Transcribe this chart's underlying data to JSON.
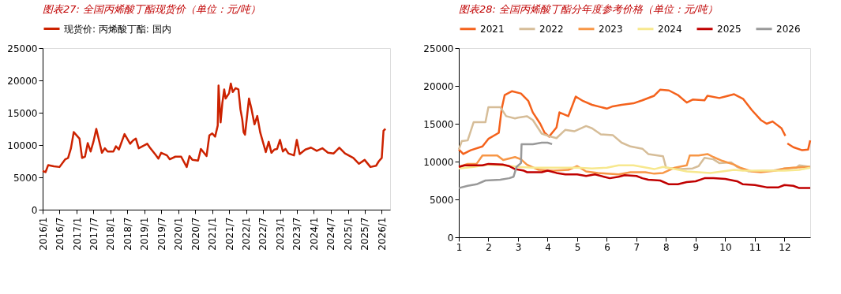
{
  "chart_data": [
    {
      "type": "line",
      "title": "图表27: 全国丙烯酸丁酯现货价（单位：元/吨）",
      "legend": "top",
      "grid": false,
      "marker": "none",
      "line_style": "solid",
      "x": [
        "2016-01-01",
        "2016-02-01",
        "2016-03-01",
        "2016-05-01",
        "2016-07-01",
        "2016-09-01",
        "2016-10-01",
        "2016-11-01",
        "2016-12-01",
        "2017-02-01",
        "2017-03-01",
        "2017-04-01",
        "2017-05-01",
        "2017-06-01",
        "2017-07-01",
        "2017-08-01",
        "2017-10-01",
        "2017-11-01",
        "2017-12-01",
        "2018-02-01",
        "2018-03-01",
        "2018-04-01",
        "2018-06-01",
        "2018-08-01",
        "2018-09-01",
        "2018-10-01",
        "2018-11-01",
        "2019-02-01",
        "2019-03-01",
        "2019-05-01",
        "2019-06-01",
        "2019-07-01",
        "2019-09-01",
        "2019-10-01",
        "2019-12-01",
        "2020-02-01",
        "2020-04-01",
        "2020-05-01",
        "2020-06-01",
        "2020-08-01",
        "2020-09-01",
        "2020-11-01",
        "2020-12-01",
        "2021-01-01",
        "2021-02-01",
        "2021-03-01",
        "2021-03-10",
        "2021-04-01",
        "2021-04-20",
        "2021-05-10",
        "2021-05-25",
        "2021-07-01",
        "2021-07-20",
        "2021-08-10",
        "2021-09-10",
        "2021-10-10",
        "2021-11-01",
        "2021-11-20",
        "2021-12-05",
        "2021-12-20",
        "2022-02-01",
        "2022-03-01",
        "2022-04-01",
        "2022-05-01",
        "2022-06-01",
        "2022-08-01",
        "2022-09-01",
        "2022-10-01",
        "2022-11-01",
        "2022-12-01",
        "2023-01-01",
        "2023-02-01",
        "2023-03-01",
        "2023-04-01",
        "2023-06-01",
        "2023-07-01",
        "2023-08-01",
        "2023-10-01",
        "2023-12-01",
        "2024-02-01",
        "2024-04-01",
        "2024-06-01",
        "2024-08-01",
        "2024-10-01",
        "2024-12-01",
        "2025-03-01",
        "2025-05-01",
        "2025-07-01",
        "2025-09-01",
        "2025-11-01",
        "2025-12-01",
        "2026-01-01",
        "2026-01-20",
        "2026-02-10"
      ],
      "series": [
        {
          "name": "现货价: 丙烯酸丁酯: 国内",
          "color": "#cc2200",
          "values": [
            6000,
            5800,
            6900,
            6700,
            6600,
            7800,
            8000,
            9500,
            12000,
            11000,
            8000,
            8200,
            10300,
            9000,
            10500,
            12500,
            8800,
            9500,
            9000,
            9000,
            9800,
            9300,
            11700,
            10200,
            10700,
            11000,
            9500,
            10200,
            9600,
            8500,
            7900,
            8800,
            8400,
            7800,
            8200,
            8200,
            6600,
            8300,
            7700,
            7600,
            9400,
            8300,
            11500,
            11800,
            11300,
            13000,
            19200,
            13500,
            16500,
            18600,
            17200,
            18000,
            19500,
            18200,
            18800,
            18600,
            15500,
            14000,
            12000,
            11600,
            17200,
            15500,
            13200,
            14500,
            12000,
            8900,
            10500,
            8800,
            9300,
            9400,
            10800,
            9000,
            9400,
            8700,
            8400,
            10800,
            8600,
            9300,
            9600,
            9100,
            9500,
            8800,
            8700,
            9600,
            8700,
            8000,
            7100,
            7700,
            6600,
            6800,
            7500,
            8000,
            12200,
            12500
          ]
        }
      ],
      "xlim": [
        "2016-01-01",
        "2026-04-01"
      ],
      "xticks": [
        {
          "value": "2016-01-01",
          "label": "2016/1"
        },
        {
          "value": "2016-07-01",
          "label": "2016/7"
        },
        {
          "value": "2017-01-01",
          "label": "2017/1"
        },
        {
          "value": "2017-07-01",
          "label": "2017/7"
        },
        {
          "value": "2018-01-01",
          "label": "2018/1"
        },
        {
          "value": "2018-07-01",
          "label": "2018/7"
        },
        {
          "value": "2019-01-01",
          "label": "2019/1"
        },
        {
          "value": "2019-07-01",
          "label": "2019/7"
        },
        {
          "value": "2020-01-01",
          "label": "2020/1"
        },
        {
          "value": "2020-07-01",
          "label": "2020/7"
        },
        {
          "value": "2021-01-01",
          "label": "2021/1"
        },
        {
          "value": "2021-07-01",
          "label": "2021/7"
        },
        {
          "value": "2022-01-01",
          "label": "2022/1"
        },
        {
          "value": "2022-07-01",
          "label": "2022/7"
        },
        {
          "value": "2023-01-01",
          "label": "2023/1"
        },
        {
          "value": "2023-07-01",
          "label": "2023/7"
        },
        {
          "value": "2024-01-01",
          "label": "2024/1"
        },
        {
          "value": "2024-07-01",
          "label": "2024/7"
        },
        {
          "value": "2025-01-01",
          "label": "2025/1"
        },
        {
          "value": "2025-07-01",
          "label": "2025/7"
        },
        {
          "value": "2026-01-01",
          "label": "2026/1"
        }
      ],
      "ylim": [
        0,
        25000
      ],
      "yticks": [
        0,
        5000,
        10000,
        15000,
        20000,
        25000
      ]
    },
    {
      "type": "line",
      "title": "图表28: 全国丙烯酸丁酯分年度参考价格（单位：元/吨）",
      "legend": "top",
      "grid": false,
      "marker": "none",
      "line_style": "solid",
      "series": [
        {
          "name": "2021",
          "color": "#f4621c",
          "x": [
            1.0,
            1.15,
            1.4,
            1.8,
            2.0,
            2.35,
            2.45,
            2.55,
            2.8,
            3.1,
            3.35,
            3.5,
            3.75,
            3.9,
            4.05,
            4.3,
            4.4,
            4.7,
            4.95,
            5.2,
            5.5,
            5.8,
            6.0,
            6.2,
            6.5,
            6.9,
            7.2,
            7.6,
            7.8,
            8.1,
            8.4,
            8.7,
            8.9,
            9.3,
            9.4,
            9.8,
            10.0,
            10.3,
            10.6,
            10.9,
            11.2,
            11.4,
            11.6,
            11.9,
            12.03,
            12.06,
            12.1,
            12.3,
            12.6,
            12.8,
            12.87
          ],
          "values": [
            11600,
            11000,
            11500,
            12000,
            13000,
            13800,
            17000,
            18800,
            19300,
            19000,
            18000,
            16500,
            15000,
            13800,
            13300,
            14500,
            16500,
            16000,
            18600,
            18000,
            17500,
            17200,
            17000,
            17300,
            17500,
            17700,
            18100,
            18700,
            19500,
            19400,
            18800,
            17800,
            18200,
            18100,
            18700,
            18400,
            18600,
            18900,
            18300,
            16800,
            15500,
            15000,
            15300,
            14400,
            13400,
            null,
            12400,
            11900,
            11500,
            11600,
            12800
          ]
        },
        {
          "name": "2022",
          "color": "#d6bd98",
          "x": [
            1.0,
            1.1,
            1.3,
            1.5,
            1.9,
            2.0,
            2.4,
            2.6,
            2.9,
            3.0,
            3.3,
            3.5,
            3.8,
            4.1,
            4.3,
            4.6,
            4.9,
            5.3,
            5.5,
            5.8,
            6.2,
            6.5,
            6.8,
            7.2,
            7.4,
            7.9,
            8.0,
            8.5,
            8.9,
            9.1,
            9.3,
            9.6,
            9.8,
            10.2,
            10.4,
            10.8,
            11.3,
            11.6,
            12.0,
            12.4,
            12.5,
            12.87
          ],
          "values": [
            11600,
            12700,
            12800,
            15200,
            15200,
            17200,
            17200,
            16000,
            15700,
            15800,
            16000,
            15500,
            13700,
            13300,
            13100,
            14200,
            14000,
            14700,
            14400,
            13600,
            13500,
            12500,
            12000,
            11700,
            11000,
            10700,
            9200,
            9000,
            9100,
            9400,
            10500,
            10300,
            9800,
            9900,
            9300,
            8700,
            8800,
            8800,
            9100,
            9200,
            9500,
            9300
          ]
        },
        {
          "name": "2023",
          "color": "#f79646",
          "x": [
            1.0,
            1.3,
            1.6,
            1.8,
            2.3,
            2.5,
            2.9,
            3.1,
            3.3,
            3.7,
            4.2,
            4.7,
            5.0,
            5.3,
            5.7,
            6.0,
            6.4,
            6.8,
            7.3,
            7.6,
            7.9,
            8.3,
            8.7,
            8.8,
            9.1,
            9.4,
            9.6,
            9.9,
            10.3,
            10.5,
            10.9,
            11.2,
            11.7,
            12.0,
            12.3,
            12.87
          ],
          "values": [
            9300,
            9700,
            9700,
            10800,
            10800,
            10200,
            10600,
            10300,
            9600,
            8900,
            8800,
            8900,
            9400,
            8700,
            8500,
            8400,
            8300,
            8600,
            8600,
            8400,
            8500,
            9200,
            9500,
            10800,
            10800,
            11000,
            10600,
            10100,
            9600,
            9200,
            8700,
            8600,
            8800,
            9100,
            9200,
            9300
          ]
        },
        {
          "name": "2024",
          "color": "#f7e88e",
          "x": [
            1.0,
            1.5,
            2.0,
            2.5,
            3.0,
            3.5,
            4.0,
            4.5,
            5.0,
            5.5,
            6.0,
            6.4,
            6.9,
            7.2,
            7.6,
            7.9,
            8.3,
            8.7,
            9.1,
            9.5,
            9.9,
            10.3,
            10.6,
            11.0,
            11.5,
            12.0,
            12.5,
            12.87
          ],
          "values": [
            9100,
            9300,
            9600,
            9500,
            9300,
            9200,
            9200,
            9200,
            9200,
            9100,
            9200,
            9500,
            9500,
            9300,
            9000,
            9300,
            9000,
            8700,
            8600,
            8500,
            8700,
            8900,
            8800,
            8800,
            8800,
            8800,
            8900,
            9200
          ]
        },
        {
          "name": "2025",
          "color": "#c00000",
          "x": [
            1.0,
            1.2,
            1.8,
            2.0,
            2.5,
            2.7,
            2.9,
            3.2,
            3.3,
            3.8,
            4.0,
            4.3,
            4.6,
            5.0,
            5.3,
            5.6,
            5.9,
            6.1,
            6.4,
            6.6,
            7.0,
            7.2,
            7.4,
            7.8,
            8.1,
            8.4,
            8.7,
            9.0,
            9.3,
            9.6,
            10.0,
            10.4,
            10.6,
            11.0,
            11.4,
            11.8,
            12.0,
            12.3,
            12.5,
            12.87
          ],
          "values": [
            9300,
            9500,
            9500,
            9700,
            9600,
            9400,
            9000,
            8800,
            8600,
            8600,
            8800,
            8500,
            8300,
            8300,
            8100,
            8300,
            8000,
            7800,
            8000,
            8200,
            8100,
            7800,
            7600,
            7500,
            7000,
            7000,
            7300,
            7400,
            7800,
            7800,
            7700,
            7400,
            7000,
            6900,
            6600,
            6600,
            6900,
            6800,
            6500,
            6500
          ]
        },
        {
          "name": "2026",
          "color": "#999999",
          "x": [
            1.0,
            1.3,
            1.6,
            1.9,
            2.4,
            2.7,
            2.85,
            2.95,
            3.1,
            3.12,
            3.5,
            3.8,
            4.0,
            4.15
          ],
          "values": [
            6500,
            6800,
            7000,
            7500,
            7600,
            7800,
            8000,
            9300,
            9800,
            12300,
            12300,
            12500,
            12500,
            12300
          ]
        }
      ],
      "xlim": [
        1,
        12.87
      ],
      "xticks": [
        1,
        2,
        3,
        4,
        5,
        6,
        7,
        8,
        9,
        10,
        11,
        12
      ],
      "ylim": [
        0,
        25000
      ],
      "yticks": [
        0,
        5000,
        10000,
        15000,
        20000,
        25000
      ]
    }
  ]
}
